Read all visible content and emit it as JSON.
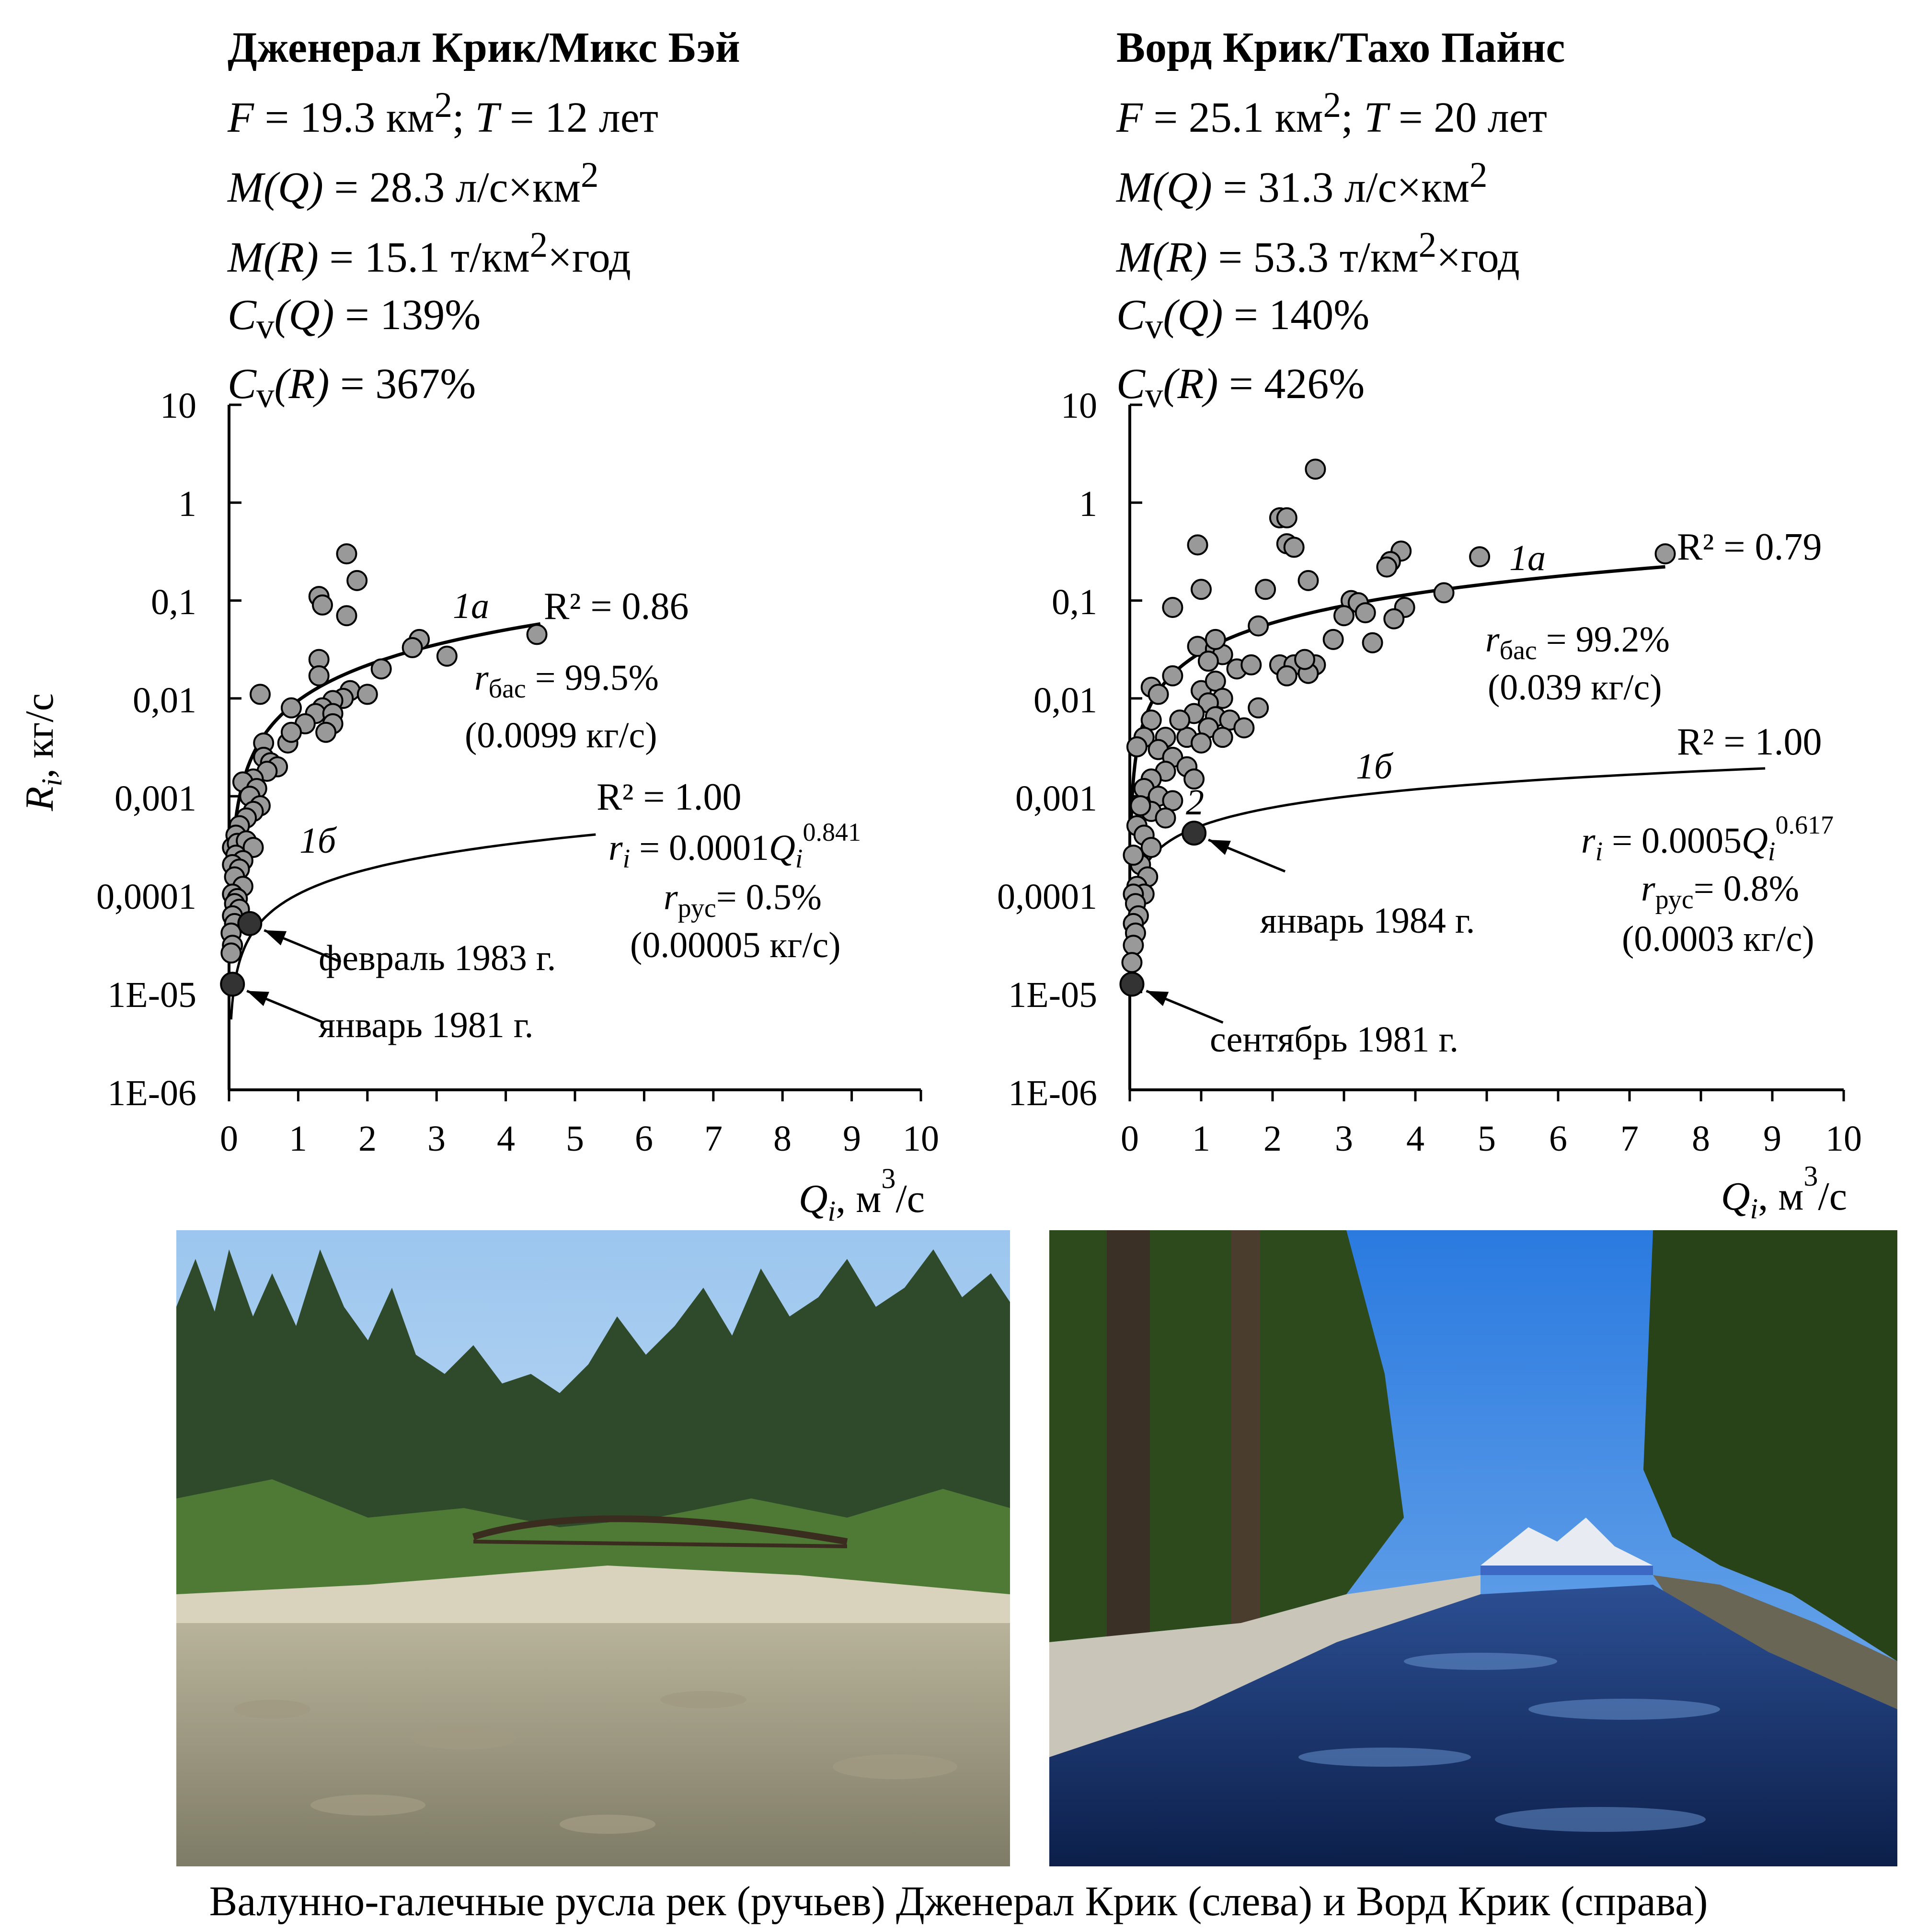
{
  "chart_data": [
    {
      "type": "scatter",
      "title": "Дженерал Крик/Микс Бэй",
      "stats": {
        "F": {
          "symbol": "F",
          "value": "19.3 км",
          "sup": "2"
        },
        "T": {
          "symbol": "T",
          "value": "12 лет"
        },
        "MQ": {
          "symbol": "M(Q)",
          "value": "28.3 л/с×км",
          "sup": "2"
        },
        "MR": {
          "symbol": "M(R)",
          "value": "15.1 т/км",
          "sup": "2",
          "after": "×год"
        },
        "CvQ": {
          "symbol": "C",
          "sub": "v",
          "arg": "(Q)",
          "value": "139%"
        },
        "CvR": {
          "symbol": "C",
          "sub": "v",
          "arg": "(R)",
          "value": "367%"
        }
      },
      "xlabel": "Q",
      "xlabel_sub": "i",
      "xlabel_unit": ", м",
      "xlabel_unit_sup": "3",
      "xlabel_unit_after": "/с",
      "ylabel": "R",
      "ylabel_sub": "i",
      "ylabel_unit": ", кг/с",
      "xlim": [
        0,
        10
      ],
      "ylim": [
        1e-06,
        10
      ],
      "yscale": "log",
      "x_ticks": [
        "0",
        "1",
        "2",
        "3",
        "4",
        "5",
        "6",
        "7",
        "8",
        "9",
        "10"
      ],
      "y_ticks": [
        "10",
        "1",
        "0,1",
        "0,01",
        "0,001",
        "0,0001",
        "1E-05",
        "1E-06"
      ],
      "curves": [
        {
          "label": "1а",
          "r2": "R² = 0.86",
          "a": 0.0095,
          "b": 1.2,
          "x_range": [
            0.02,
            4.5
          ]
        },
        {
          "label": "1б",
          "r2": "R² = 1.00",
          "a": 0.0001,
          "b": 0.841,
          "x_range": [
            0.03,
            5.3
          ]
        }
      ],
      "annotations": {
        "r_bas": {
          "sym": "r",
          "sub": "бас",
          "value": " = 99.5%",
          "paren": "(0.0099 кг/с)"
        },
        "formula": {
          "lhs": "r",
          "lhs_sub": "i",
          "mid": " = 0.0001",
          "var": "Q",
          "var_sub": "i",
          "exp": "0.841"
        },
        "r_rus": {
          "sym": "r",
          "sub": "рус",
          "value": "= 0.5%",
          "paren": "(0.00005 кг/с)"
        }
      },
      "highlights": [
        {
          "label": "февраль 1983 г.",
          "x": 0.3,
          "y": 5e-05
        },
        {
          "label": "январь 1981 г.",
          "x": 0.05,
          "y": 1.2e-05
        }
      ],
      "points": [
        [
          1.7,
          0.3
        ],
        [
          1.85,
          0.16
        ],
        [
          1.3,
          0.11
        ],
        [
          1.35,
          0.09
        ],
        [
          1.7,
          0.07
        ],
        [
          4.45,
          0.045
        ],
        [
          2.75,
          0.04
        ],
        [
          2.65,
          0.033
        ],
        [
          3.15,
          0.027
        ],
        [
          1.3,
          0.025
        ],
        [
          2.2,
          0.02
        ],
        [
          1.3,
          0.017
        ],
        [
          1.75,
          0.012
        ],
        [
          2.0,
          0.011
        ],
        [
          1.65,
          0.01
        ],
        [
          0.45,
          0.011
        ],
        [
          1.5,
          0.0095
        ],
        [
          1.35,
          0.008
        ],
        [
          1.25,
          0.007
        ],
        [
          1.5,
          0.007
        ],
        [
          0.9,
          0.008
        ],
        [
          1.1,
          0.0055
        ],
        [
          1.5,
          0.0055
        ],
        [
          1.4,
          0.0045
        ],
        [
          0.85,
          0.0035
        ],
        [
          0.9,
          0.0045
        ],
        [
          0.5,
          0.0035
        ],
        [
          0.5,
          0.0025
        ],
        [
          0.6,
          0.0022
        ],
        [
          0.7,
          0.002
        ],
        [
          0.55,
          0.0018
        ],
        [
          0.35,
          0.0015
        ],
        [
          0.2,
          0.0014
        ],
        [
          0.4,
          0.0012
        ],
        [
          0.3,
          0.001
        ],
        [
          0.45,
          0.0008
        ],
        [
          0.35,
          0.0007
        ],
        [
          0.25,
          0.0006
        ],
        [
          0.15,
          0.0005
        ],
        [
          0.1,
          0.0004
        ],
        [
          0.05,
          0.0003
        ],
        [
          0.12,
          0.00033
        ],
        [
          0.25,
          0.00035
        ],
        [
          0.35,
          0.0003
        ],
        [
          0.1,
          0.00025
        ],
        [
          0.2,
          0.00022
        ],
        [
          0.05,
          0.0002
        ],
        [
          0.15,
          0.00018
        ],
        [
          0.08,
          0.00015
        ],
        [
          0.2,
          0.00012
        ],
        [
          0.05,
          0.0001
        ],
        [
          0.12,
          9e-05
        ],
        [
          0.08,
          8e-05
        ],
        [
          0.15,
          7e-05
        ],
        [
          0.05,
          6e-05
        ],
        [
          0.08,
          5e-05
        ],
        [
          0.03,
          4e-05
        ],
        [
          0.05,
          3e-05
        ],
        [
          0.03,
          2.5e-05
        ]
      ]
    },
    {
      "type": "scatter",
      "title": "Ворд Крик/Тахо Пайнс",
      "stats": {
        "F": {
          "symbol": "F",
          "value": "25.1 км",
          "sup": "2"
        },
        "T": {
          "symbol": "T",
          "value": "20 лет"
        },
        "MQ": {
          "symbol": "M(Q)",
          "value": "31.3 л/с×км",
          "sup": "2"
        },
        "MR": {
          "symbol": "M(R)",
          "value": "53.3 т/км",
          "sup": "2",
          "after": "×год"
        },
        "CvQ": {
          "symbol": "C",
          "sub": "v",
          "arg": "(Q)",
          "value": "140%"
        },
        "CvR": {
          "symbol": "C",
          "sub": "v",
          "arg": "(R)",
          "value": "426%"
        }
      },
      "xlabel": "Q",
      "xlabel_sub": "i",
      "xlabel_unit": ", м",
      "xlabel_unit_sup": "3",
      "xlabel_unit_after": "/с",
      "xlim": [
        0,
        10
      ],
      "ylim": [
        1e-06,
        10
      ],
      "yscale": "log",
      "x_ticks": [
        "0",
        "1",
        "2",
        "3",
        "4",
        "5",
        "6",
        "7",
        "8",
        "9",
        "10"
      ],
      "y_ticks": [
        "10",
        "1",
        "0,1",
        "0,01",
        "0,001",
        "0,0001",
        "1E-05",
        "1E-06"
      ],
      "curves": [
        {
          "label": "1а",
          "r2": "R² = 0.79",
          "a": 0.0295,
          "b": 1.0,
          "x_range": [
            0.02,
            7.5
          ]
        },
        {
          "label": "1б",
          "r2": "R² = 1.00",
          "a": 0.0005,
          "b": 0.617,
          "x_range": [
            0.03,
            8.9
          ]
        }
      ],
      "annotations": {
        "r_bas": {
          "sym": "r",
          "sub": "бас",
          "value": " = 99.2%",
          "paren": "(0.039 кг/с)"
        },
        "formula": {
          "lhs": "r",
          "lhs_sub": "i",
          "mid": " = 0.0005",
          "var": "Q",
          "var_sub": "i",
          "exp": "0.617"
        },
        "r_rus": {
          "sym": "r",
          "sub": "рус",
          "value": "= 0.8%",
          "paren": "(0.0003 кг/с)"
        },
        "marker2": "2"
      },
      "highlights": [
        {
          "label": "январь 1984 г.",
          "x": 0.9,
          "y": 0.00042
        },
        {
          "label": "сентябрь 1981 г.",
          "x": 0.03,
          "y": 1.2e-05
        }
      ],
      "points": [
        [
          2.6,
          2.2
        ],
        [
          2.1,
          0.7
        ],
        [
          2.2,
          0.7
        ],
        [
          2.2,
          0.38
        ],
        [
          2.3,
          0.35
        ],
        [
          0.95,
          0.37
        ],
        [
          3.8,
          0.32
        ],
        [
          3.65,
          0.25
        ],
        [
          3.6,
          0.22
        ],
        [
          4.9,
          0.28
        ],
        [
          7.5,
          0.3
        ],
        [
          2.5,
          0.16
        ],
        [
          1.0,
          0.13
        ],
        [
          1.9,
          0.13
        ],
        [
          3.1,
          0.1
        ],
        [
          3.2,
          0.095
        ],
        [
          3.3,
          0.075
        ],
        [
          3.0,
          0.07
        ],
        [
          3.85,
          0.085
        ],
        [
          4.4,
          0.12
        ],
        [
          3.7,
          0.065
        ],
        [
          0.6,
          0.085
        ],
        [
          0.95,
          0.034
        ],
        [
          1.2,
          0.032
        ],
        [
          1.3,
          0.028
        ],
        [
          1.1,
          0.024
        ],
        [
          1.5,
          0.02
        ],
        [
          1.7,
          0.022
        ],
        [
          2.1,
          0.022
        ],
        [
          2.3,
          0.022
        ],
        [
          2.6,
          0.022
        ],
        [
          2.5,
          0.018
        ],
        [
          2.2,
          0.017
        ],
        [
          2.45,
          0.025
        ],
        [
          2.85,
          0.04
        ],
        [
          3.4,
          0.037
        ],
        [
          1.8,
          0.055
        ],
        [
          1.2,
          0.04
        ],
        [
          0.3,
          0.013
        ],
        [
          0.4,
          0.011
        ],
        [
          0.6,
          0.017
        ],
        [
          1.0,
          0.012
        ],
        [
          1.2,
          0.015
        ],
        [
          1.3,
          0.01
        ],
        [
          1.1,
          0.009
        ],
        [
          0.9,
          0.007
        ],
        [
          1.2,
          0.0065
        ],
        [
          1.4,
          0.006
        ],
        [
          1.6,
          0.005
        ],
        [
          1.8,
          0.008
        ],
        [
          1.1,
          0.005
        ],
        [
          1.3,
          0.004
        ],
        [
          0.8,
          0.004
        ],
        [
          1.0,
          0.0035
        ],
        [
          0.5,
          0.004
        ],
        [
          0.7,
          0.006
        ],
        [
          0.3,
          0.006
        ],
        [
          0.2,
          0.004
        ],
        [
          0.4,
          0.003
        ],
        [
          0.6,
          0.0025
        ],
        [
          0.8,
          0.002
        ],
        [
          0.9,
          0.0015
        ],
        [
          0.5,
          0.0018
        ],
        [
          0.3,
          0.0015
        ],
        [
          0.1,
          0.0032
        ],
        [
          0.2,
          0.0012
        ],
        [
          0.4,
          0.001
        ],
        [
          0.6,
          0.0009
        ],
        [
          0.3,
          0.0007
        ],
        [
          0.5,
          0.0006
        ],
        [
          0.15,
          0.0008
        ],
        [
          0.1,
          0.0005
        ],
        [
          0.2,
          0.0004
        ],
        [
          0.3,
          0.0003
        ],
        [
          0.15,
          0.0002
        ],
        [
          0.25,
          0.00015
        ],
        [
          0.05,
          0.00025
        ],
        [
          0.1,
          0.00012
        ],
        [
          0.2,
          0.0001
        ],
        [
          0.05,
          0.0001
        ],
        [
          0.08,
          8e-05
        ],
        [
          0.12,
          6e-05
        ],
        [
          0.05,
          5e-05
        ],
        [
          0.08,
          4e-05
        ],
        [
          0.05,
          3e-05
        ],
        [
          0.03,
          2e-05
        ]
      ]
    }
  ],
  "photos": {
    "left": {
      "icon": "forest-creek-bridge-photo"
    },
    "right": {
      "icon": "creek-lake-mountain-photo"
    }
  },
  "caption": "Валунно-галечные русла рек (ручьев) Дженерал Крик (слева) и Ворд Крик (справа)",
  "colors": {
    "point_fill": "#999999",
    "highlight_fill": "#333333",
    "line": "#000000"
  }
}
